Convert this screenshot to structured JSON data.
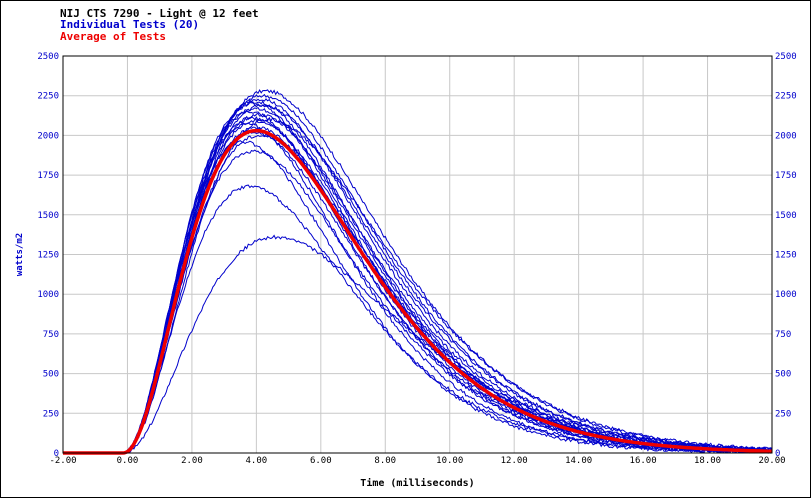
{
  "header": {
    "title": "NIJ CTS 7290 - Light @ 12 feet",
    "line2": "Individual Tests (20)",
    "line3": "Average of Tests"
  },
  "colors": {
    "title": "#000000",
    "individual": "#0000cc",
    "average": "#ee0000",
    "grid": "#c8c8c8",
    "axis_text": "#0000cc"
  },
  "chart_data": {
    "type": "line",
    "title": "NIJ CTS 7290 - Light @ 12 feet",
    "xlabel": "Time (milliseconds)",
    "ylabel": "watts/m2",
    "xlim": [
      -2,
      20
    ],
    "ylim": [
      0,
      2500
    ],
    "x_ticks": [
      "-2.00",
      "0.00",
      "2.00",
      "4.00",
      "6.00",
      "8.00",
      "10.00",
      "12.00",
      "14.00",
      "16.00",
      "18.00",
      "20.00"
    ],
    "y_ticks": [
      "0",
      "250",
      "500",
      "750",
      "1000",
      "1250",
      "1500",
      "1750",
      "2000",
      "2250",
      "2500"
    ],
    "grid": true,
    "series": [
      {
        "name": "Individual Tests (20)",
        "color": "#0000cc",
        "count": 20,
        "peak_values": [
          2280,
          2250,
          2230,
          2210,
          2200,
          2190,
          2170,
          2150,
          2130,
          2110,
          2090,
          2070,
          2050,
          2020,
          2000,
          1960,
          1900,
          1680,
          1360,
          2100
        ],
        "peak_time": [
          4.3,
          4.2,
          4.1,
          4.0,
          3.9,
          4.2,
          4.0,
          3.8,
          4.1,
          3.9,
          4.0,
          3.7,
          4.0,
          3.9,
          4.1,
          3.6,
          3.9,
          3.8,
          4.6,
          4.4
        ]
      },
      {
        "name": "Average of Tests",
        "color": "#ee0000",
        "peak_value": 2030,
        "peak_time": 4.0
      }
    ]
  }
}
